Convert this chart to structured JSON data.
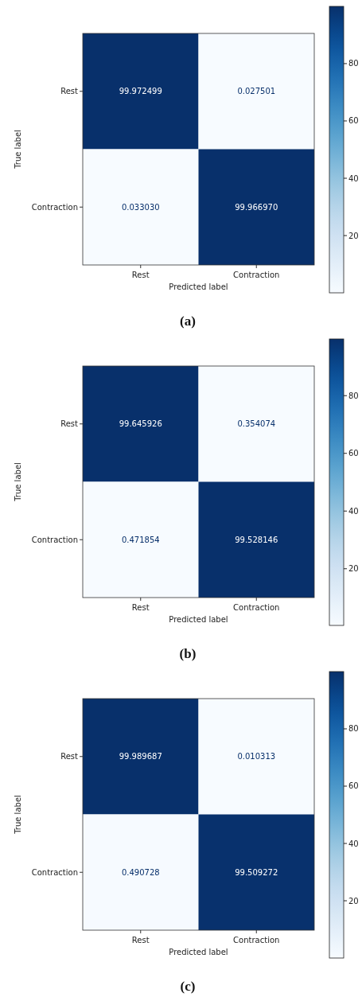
{
  "chart_data": [
    {
      "type": "heatmap",
      "title": "(a)",
      "xlabel": "Predicted label",
      "ylabel": "True label",
      "categories": [
        "Rest",
        "Contraction"
      ],
      "y_categories": [
        "Rest",
        "Contraction"
      ],
      "cells": [
        [
          99.972499,
          0.027501
        ],
        [
          0.03303,
          99.96697
        ]
      ],
      "cell_labels": [
        [
          "99.972499",
          "0.027501"
        ],
        [
          "0.033030",
          "99.966970"
        ]
      ],
      "clim": [
        0.027501,
        99.972499
      ],
      "cticks": [
        20,
        40,
        60,
        80
      ]
    },
    {
      "type": "heatmap",
      "title": "(b)",
      "xlabel": "Predicted label",
      "ylabel": "True label",
      "categories": [
        "Rest",
        "Contraction"
      ],
      "y_categories": [
        "Rest",
        "Contraction"
      ],
      "cells": [
        [
          99.645926,
          0.354074
        ],
        [
          0.471854,
          99.528146
        ]
      ],
      "cell_labels": [
        [
          "99.645926",
          "0.354074"
        ],
        [
          "0.471854",
          "99.528146"
        ]
      ],
      "clim": [
        0.354074,
        99.645926
      ],
      "cticks": [
        20,
        40,
        60,
        80
      ]
    },
    {
      "type": "heatmap",
      "title": "(c)",
      "xlabel": "Predicted label",
      "ylabel": "True label",
      "categories": [
        "Rest",
        "Contraction"
      ],
      "y_categories": [
        "Rest",
        "Contraction"
      ],
      "cells": [
        [
          99.989687,
          0.010313
        ],
        [
          0.490728,
          99.509272
        ]
      ],
      "cell_labels": [
        [
          "99.989687",
          "0.010313"
        ],
        [
          "0.490728",
          "99.509272"
        ]
      ],
      "clim": [
        0.010313,
        99.989687
      ],
      "cticks": [
        20,
        40,
        60,
        80
      ]
    }
  ]
}
